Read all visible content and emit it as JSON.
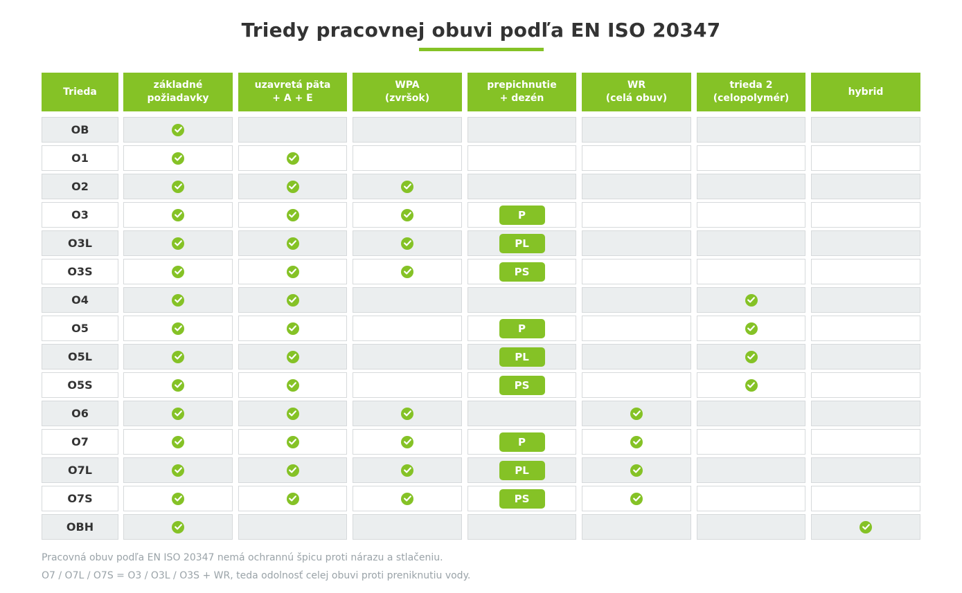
{
  "title": "Triedy pracovnej obuvi podľa EN ISO 20347",
  "accent_color": "#85c226",
  "headers": [
    "Trieda",
    "základné\npožiadavky",
    "uzavretá päta\n+ A + E",
    "WPA\n(zvršok)",
    "prepichnutie\n+ dezén",
    "WR\n(celá obuv)",
    "trieda 2\n(celopolymér)",
    "hybrid"
  ],
  "rows": [
    {
      "cls": "OB",
      "basic": true,
      "heel": false,
      "wpa": false,
      "pen": "",
      "wr": false,
      "class2": false,
      "hybrid": false
    },
    {
      "cls": "O1",
      "basic": true,
      "heel": true,
      "wpa": false,
      "pen": "",
      "wr": false,
      "class2": false,
      "hybrid": false
    },
    {
      "cls": "O2",
      "basic": true,
      "heel": true,
      "wpa": true,
      "pen": "",
      "wr": false,
      "class2": false,
      "hybrid": false
    },
    {
      "cls": "O3",
      "basic": true,
      "heel": true,
      "wpa": true,
      "pen": "P",
      "wr": false,
      "class2": false,
      "hybrid": false
    },
    {
      "cls": "O3L",
      "basic": true,
      "heel": true,
      "wpa": true,
      "pen": "PL",
      "wr": false,
      "class2": false,
      "hybrid": false
    },
    {
      "cls": "O3S",
      "basic": true,
      "heel": true,
      "wpa": true,
      "pen": "PS",
      "wr": false,
      "class2": false,
      "hybrid": false
    },
    {
      "cls": "O4",
      "basic": true,
      "heel": true,
      "wpa": false,
      "pen": "",
      "wr": false,
      "class2": true,
      "hybrid": false
    },
    {
      "cls": "O5",
      "basic": true,
      "heel": true,
      "wpa": false,
      "pen": "P",
      "wr": false,
      "class2": true,
      "hybrid": false
    },
    {
      "cls": "O5L",
      "basic": true,
      "heel": true,
      "wpa": false,
      "pen": "PL",
      "wr": false,
      "class2": true,
      "hybrid": false
    },
    {
      "cls": "O5S",
      "basic": true,
      "heel": true,
      "wpa": false,
      "pen": "PS",
      "wr": false,
      "class2": true,
      "hybrid": false
    },
    {
      "cls": "O6",
      "basic": true,
      "heel": true,
      "wpa": true,
      "pen": "",
      "wr": true,
      "class2": false,
      "hybrid": false
    },
    {
      "cls": "O7",
      "basic": true,
      "heel": true,
      "wpa": true,
      "pen": "P",
      "wr": true,
      "class2": false,
      "hybrid": false
    },
    {
      "cls": "O7L",
      "basic": true,
      "heel": true,
      "wpa": true,
      "pen": "PL",
      "wr": true,
      "class2": false,
      "hybrid": false
    },
    {
      "cls": "O7S",
      "basic": true,
      "heel": true,
      "wpa": true,
      "pen": "PS",
      "wr": true,
      "class2": false,
      "hybrid": false
    },
    {
      "cls": "OBH",
      "basic": true,
      "heel": false,
      "wpa": false,
      "pen": "",
      "wr": false,
      "class2": false,
      "hybrid": true
    }
  ],
  "check_icon": "check-circle-icon",
  "notes": [
    "Pracovná obuv podľa EN ISO 20347 nemá ochrannú špicu proti nárazu a stlačeniu.",
    "O7 / O7L / O7S = O3 / O3L / O3S + WR, teda odolnosť celej obuvi proti preniknutiu vody."
  ]
}
